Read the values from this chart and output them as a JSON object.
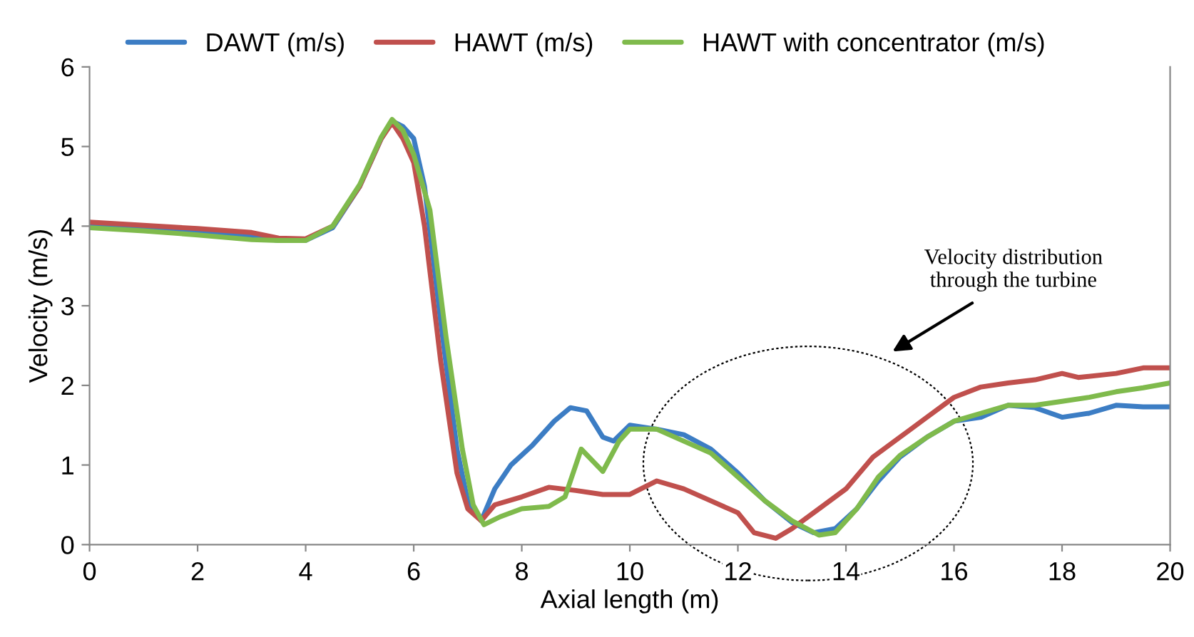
{
  "chart_data": {
    "type": "line",
    "xlabel": "Axial length (m)",
    "ylabel": "Velocity (m/s)",
    "xlim": [
      0,
      20
    ],
    "ylim": [
      0,
      6
    ],
    "xticks": [
      0,
      2,
      4,
      6,
      8,
      10,
      12,
      14,
      16,
      18,
      20
    ],
    "yticks": [
      0,
      1,
      2,
      3,
      4,
      5,
      6
    ],
    "grid": false,
    "legend": "top",
    "marker": "none",
    "line_style": "solid",
    "annotations": [
      "Velocity distribution\nthrough the turbine"
    ],
    "series": [
      {
        "name": "DAWT (m/s)",
        "color": "#3c7dc4",
        "x": [
          0,
          1,
          2,
          3,
          3.5,
          4,
          4.5,
          5,
          5.4,
          5.6,
          5.8,
          6.0,
          6.2,
          6.5,
          6.8,
          7.0,
          7.25,
          7.5,
          7.8,
          8.2,
          8.6,
          8.9,
          9.2,
          9.5,
          9.7,
          10.0,
          10.5,
          11.0,
          11.5,
          12.0,
          12.5,
          13.0,
          13.4,
          13.8,
          14.2,
          14.6,
          15.0,
          15.5,
          16.0,
          16.5,
          17.0,
          17.5,
          18.0,
          18.5,
          19.0,
          19.5,
          20
        ],
        "values": [
          4.02,
          3.98,
          3.93,
          3.87,
          3.82,
          3.82,
          3.98,
          4.5,
          5.1,
          5.32,
          5.25,
          5.1,
          4.5,
          2.8,
          1.2,
          0.55,
          0.3,
          0.7,
          1.0,
          1.25,
          1.55,
          1.72,
          1.68,
          1.35,
          1.3,
          1.5,
          1.45,
          1.38,
          1.2,
          0.9,
          0.55,
          0.28,
          0.15,
          0.2,
          0.45,
          0.8,
          1.1,
          1.35,
          1.55,
          1.6,
          1.75,
          1.72,
          1.6,
          1.65,
          1.75,
          1.73,
          1.73
        ]
      },
      {
        "name": "HAWT (m/s)",
        "color": "#c0504d",
        "x": [
          0,
          1,
          2,
          3,
          3.5,
          4,
          4.5,
          5,
          5.4,
          5.6,
          5.8,
          6.0,
          6.2,
          6.5,
          6.8,
          7.0,
          7.25,
          7.5,
          8.0,
          8.5,
          9.0,
          9.5,
          10.0,
          10.5,
          11.0,
          11.5,
          12.0,
          12.3,
          12.7,
          13.0,
          13.5,
          14.0,
          14.5,
          15.0,
          15.5,
          16.0,
          16.5,
          17.0,
          17.5,
          18.0,
          18.3,
          19.0,
          19.5,
          20
        ],
        "values": [
          4.05,
          4.01,
          3.97,
          3.92,
          3.85,
          3.84,
          4.0,
          4.5,
          5.1,
          5.3,
          5.1,
          4.8,
          4.0,
          2.3,
          0.9,
          0.45,
          0.3,
          0.5,
          0.6,
          0.72,
          0.68,
          0.63,
          0.63,
          0.8,
          0.7,
          0.55,
          0.4,
          0.15,
          0.08,
          0.2,
          0.45,
          0.7,
          1.1,
          1.35,
          1.6,
          1.85,
          1.98,
          2.03,
          2.07,
          2.15,
          2.1,
          2.15,
          2.22,
          2.22
        ]
      },
      {
        "name": "HAWT with concentrator (m/s)",
        "color": "#7fba4c",
        "x": [
          0,
          1,
          2,
          3,
          3.5,
          4,
          4.5,
          5,
          5.4,
          5.6,
          5.8,
          6.0,
          6.3,
          6.6,
          6.9,
          7.1,
          7.3,
          7.6,
          8.0,
          8.5,
          8.8,
          9.1,
          9.5,
          9.8,
          10.0,
          10.5,
          11.0,
          11.5,
          12.0,
          12.5,
          13.0,
          13.5,
          13.8,
          14.2,
          14.6,
          15.0,
          15.5,
          16.0,
          16.5,
          17.0,
          17.5,
          18.0,
          18.5,
          19.0,
          19.5,
          20
        ],
        "values": [
          3.98,
          3.94,
          3.89,
          3.83,
          3.82,
          3.82,
          4.0,
          4.52,
          5.12,
          5.34,
          5.2,
          4.9,
          4.2,
          2.6,
          1.2,
          0.5,
          0.25,
          0.35,
          0.45,
          0.48,
          0.6,
          1.2,
          0.92,
          1.3,
          1.45,
          1.45,
          1.3,
          1.15,
          0.85,
          0.55,
          0.3,
          0.12,
          0.15,
          0.45,
          0.85,
          1.12,
          1.35,
          1.55,
          1.65,
          1.75,
          1.75,
          1.8,
          1.85,
          1.92,
          1.97,
          2.03
        ]
      }
    ]
  }
}
